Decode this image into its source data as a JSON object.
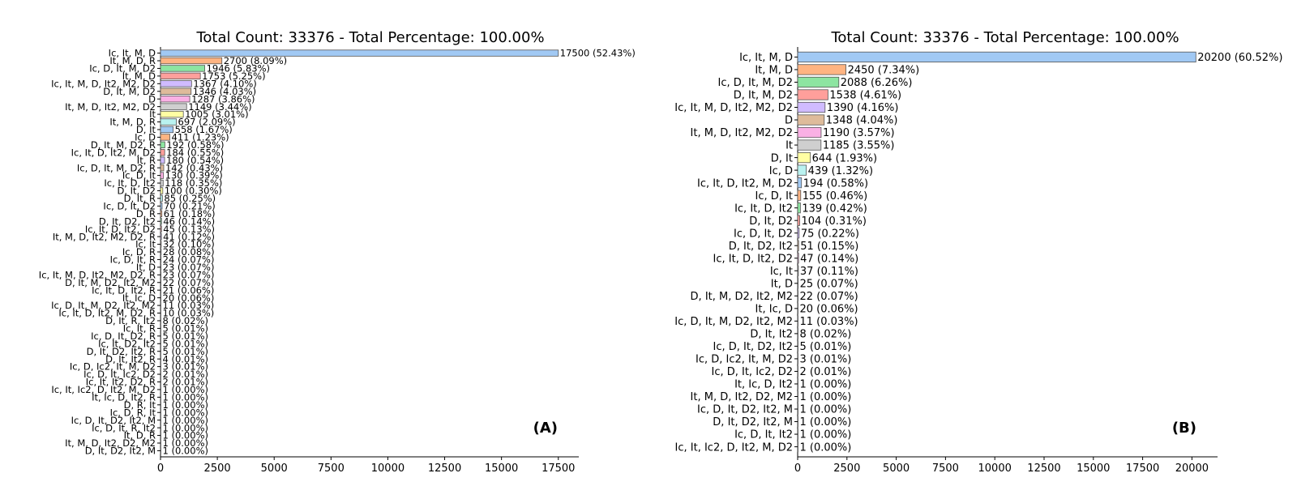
{
  "figure": {
    "panels": [
      "(A)",
      "(B)"
    ]
  },
  "chart_data": [
    {
      "type": "bar",
      "orientation": "horizontal",
      "title": "Total Count: 33376 - Total Percentage: 100.00%",
      "panel_label": "(A)",
      "xlabel": "",
      "ylabel": "",
      "xlim": [
        0,
        18400
      ],
      "xticks": [
        0,
        2500,
        5000,
        7500,
        10000,
        12500,
        15000,
        17500
      ],
      "grid": false,
      "legend": "none",
      "categories": [
        "Ic, It, M, D",
        "It, M, D, R",
        "Ic, D, It, M, D2",
        "It, M, D",
        "Ic, It, M, D, It2, M2, D2",
        "D, It, M, D2",
        "D",
        "It, M, D, It2, M2, D2",
        "It",
        "It, M, D, R",
        "D, It",
        "Ic, D",
        "D, It, M, D2, R",
        "Ic, It, D, It2, M, D2",
        "It, R",
        "Ic, D, It, M, D2, R",
        "Ic, D, It",
        "Ic, It, D, It2",
        "D, It, D2",
        "D, It, R",
        "Ic, D, It, D2",
        "D, R",
        "D, It, D2, It2",
        "Ic, It, D, It2, D2",
        "It, M, D, It2, M2, D2, R",
        "Ic, It",
        "Ic, D, R",
        "Ic, D, It, R",
        "It, D",
        "Ic, It, M, D, It2, M2, D2, R",
        "D, It, M, D2, It2, M2",
        "Ic, It, D, It2, R",
        "It, Ic, D",
        "Ic, D, It, M, D2, It2, M2",
        "Ic, It, D, It2, M, D2, R",
        "D, It, R, It2",
        "Ic, It, R",
        "Ic, D, It, D2, R",
        "Ic, It, D2, It2",
        "D, It, D2, It2, R",
        "D, It, It2, R",
        "Ic, D, Ic2, It, M, D2",
        "Ic, D, It, Ic2, D2",
        "Ic, It, It2, D2, R",
        "Ic, It, Ic2, D, It2, M, D2",
        "It, Ic, D, It2, R",
        "D, R, It",
        "Ic, D, R, It",
        "Ic, D, It, D2, It2, M",
        "Ic, D, It, R, It2",
        "It, D, R",
        "It, M, D, It2, D2, M2",
        "D, It, D2, It2, M"
      ],
      "values": [
        17500,
        2700,
        1946,
        1753,
        1367,
        1346,
        1287,
        1149,
        1005,
        697,
        558,
        411,
        192,
        184,
        180,
        142,
        130,
        118,
        100,
        85,
        70,
        61,
        46,
        45,
        41,
        32,
        28,
        24,
        23,
        23,
        22,
        21,
        20,
        11,
        10,
        8,
        5,
        5,
        5,
        5,
        4,
        3,
        2,
        2,
        1,
        1,
        1,
        1,
        1,
        1,
        1,
        1,
        1
      ],
      "value_labels": [
        "17500 (52.43%)",
        "2700 (8.09%)",
        "1946 (5.83%)",
        "1753 (5.25%)",
        "1367 (4.10%)",
        "1346 (4.03%)",
        "1287 (3.86%)",
        "1149 (3.44%)",
        "1005 (3.01%)",
        "697 (2.09%)",
        "558 (1.67%)",
        "411 (1.23%)",
        "192 (0.58%)",
        "184 (0.55%)",
        "180 (0.54%)",
        "142 (0.43%)",
        "130 (0.39%)",
        "118 (0.35%)",
        "100 (0.30%)",
        "85 (0.25%)",
        "70 (0.21%)",
        "61 (0.18%)",
        "46 (0.14%)",
        "45 (0.13%)",
        "41 (0.12%)",
        "32 (0.10%)",
        "28 (0.08%)",
        "24 (0.07%)",
        "23 (0.07%)",
        "23 (0.07%)",
        "22 (0.07%)",
        "21 (0.06%)",
        "20 (0.06%)",
        "11 (0.03%)",
        "10 (0.03%)",
        "8 (0.02%)",
        "5 (0.01%)",
        "5 (0.01%)",
        "5 (0.01%)",
        "5 (0.01%)",
        "4 (0.01%)",
        "3 (0.01%)",
        "2 (0.01%)",
        "2 (0.01%)",
        "1 (0.00%)",
        "1 (0.00%)",
        "1 (0.00%)",
        "1 (0.00%)",
        "1 (0.00%)",
        "1 (0.00%)",
        "1 (0.00%)",
        "1 (0.00%)",
        "1 (0.00%)"
      ]
    },
    {
      "type": "bar",
      "orientation": "horizontal",
      "title": "Total Count: 33376 - Total Percentage: 100.00%",
      "panel_label": "(B)",
      "xlabel": "",
      "ylabel": "",
      "xlim": [
        0,
        21300
      ],
      "xticks": [
        0,
        2500,
        5000,
        7500,
        10000,
        12500,
        15000,
        17500,
        20000
      ],
      "grid": false,
      "legend": "none",
      "categories": [
        "Ic, It, M, D",
        "It, M, D",
        "Ic, D, It, M, D2",
        "D, It, M, D2",
        "Ic, It, M, D, It2, M2, D2",
        "D",
        "It, M, D, It2, M2, D2",
        "It",
        "D, It",
        "Ic, D",
        "Ic, It, D, It2, M, D2",
        "Ic, D, It",
        "Ic, It, D, It2",
        "D, It, D2",
        "Ic, D, It, D2",
        "D, It, D2, It2",
        "Ic, It, D, It2, D2",
        "Ic, It",
        "It, D",
        "D, It, M, D2, It2, M2",
        "It, Ic, D",
        "Ic, D, It, M, D2, It2, M2",
        "D, It, It2",
        "Ic, D, It, D2, It2",
        "Ic, D, Ic2, It, M, D2",
        "Ic, D, It, Ic2, D2",
        "It, Ic, D, It2",
        "It, M, D, It2, D2, M2",
        "Ic, D, It, D2, It2, M",
        "D, It, D2, It2, M",
        "Ic, D, It, It2",
        "Ic, It, Ic2, D, It2, M, D2"
      ],
      "values": [
        20200,
        2450,
        2088,
        1538,
        1390,
        1348,
        1190,
        1185,
        644,
        439,
        194,
        155,
        139,
        104,
        75,
        51,
        47,
        37,
        25,
        22,
        20,
        11,
        8,
        5,
        3,
        2,
        1,
        1,
        1,
        1,
        1,
        1
      ],
      "value_labels": [
        "20200 (60.52%)",
        "2450 (7.34%)",
        "2088 (6.26%)",
        "1538 (4.61%)",
        "1390 (4.16%)",
        "1348 (4.04%)",
        "1190 (3.57%)",
        "1185 (3.55%)",
        "644 (1.93%)",
        "439 (1.32%)",
        "194 (0.58%)",
        "155 (0.46%)",
        "139 (0.42%)",
        "104 (0.31%)",
        "75 (0.22%)",
        "51 (0.15%)",
        "47 (0.14%)",
        "37 (0.11%)",
        "25 (0.07%)",
        "22 (0.07%)",
        "20 (0.06%)",
        "11 (0.03%)",
        "8 (0.02%)",
        "5 (0.01%)",
        "3 (0.01%)",
        "2 (0.01%)",
        "1 (0.00%)",
        "1 (0.00%)",
        "1 (0.00%)",
        "1 (0.00%)",
        "1 (0.00%)",
        "1 (0.00%)"
      ]
    }
  ],
  "palette": [
    "#a1c9f4",
    "#ffb482",
    "#8de5a1",
    "#ff9f9b",
    "#d0bbff",
    "#debb9b",
    "#fab0e4",
    "#cfcfcf",
    "#fffea3",
    "#b9f2f0"
  ]
}
